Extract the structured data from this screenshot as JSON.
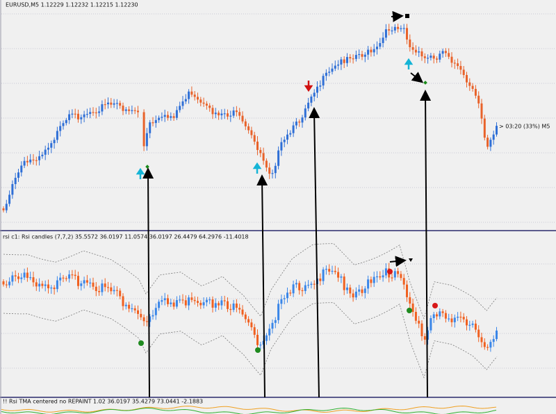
{
  "main_window": {
    "symbol_info": "EURUSD,M5  1.12229 1.12232 1.12215 1.12230",
    "timer_label": "> 03:20 (33%) M5"
  },
  "indicator_panel": {
    "label": "rsi c1: Rsi candles (7,7,2) 35.5572 36.0197 11.0574 36.0197 26.4479 64.2976 -11.4018"
  },
  "tma_panel": {
    "label": "!! Rsi TMA centered no REPAINT 1.02 36.0197 35.4279 73.0441 -2.1883"
  }
}
